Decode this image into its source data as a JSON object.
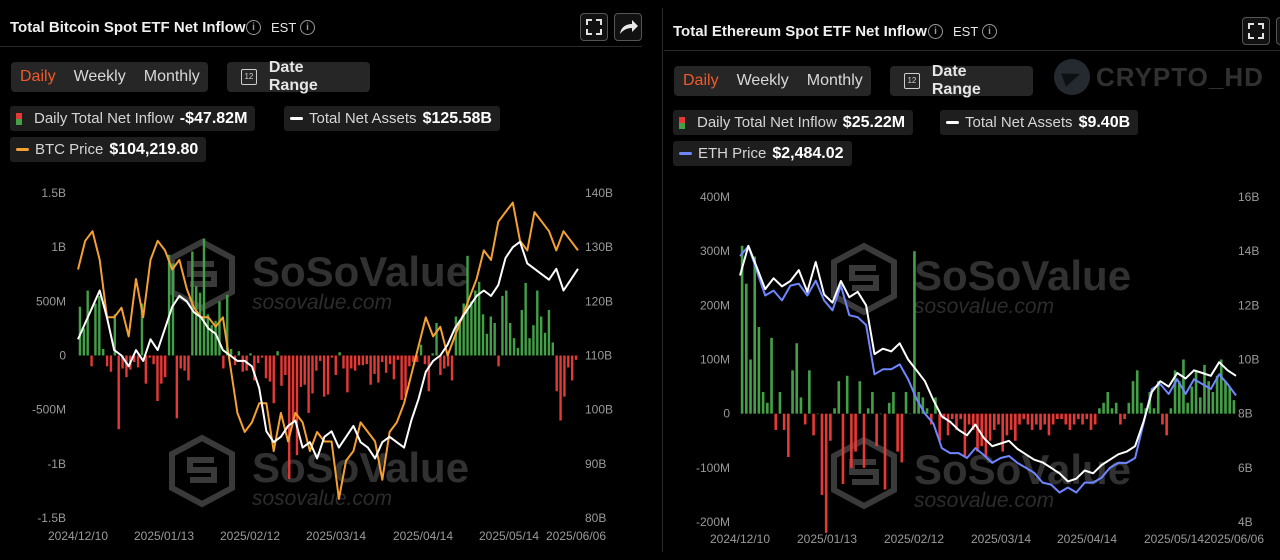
{
  "btc": {
    "title": "Total Bitcoin Spot ETF Net Inflow",
    "info_icon": "i",
    "timezone": "EST",
    "tabs": [
      "Daily",
      "Weekly",
      "Monthly"
    ],
    "active_tab": "Daily",
    "date_range_label": "Date Range",
    "calendar_digits": "12",
    "legend": {
      "inflow_label": "Daily Total Net Inflow",
      "inflow_value": "-$47.82M",
      "assets_label": "Total Net Assets",
      "assets_value": "$125.58B",
      "price_label": "BTC Price",
      "price_value": "$104,219.80"
    }
  },
  "eth": {
    "title": "Total Ethereum Spot ETF Net Inflow",
    "info_icon": "i",
    "timezone": "EST",
    "tabs": [
      "Daily",
      "Weekly",
      "Monthly"
    ],
    "active_tab": "Daily",
    "date_range_label": "Date Range",
    "calendar_digits": "12",
    "legend": {
      "inflow_label": "Daily Total Net Inflow",
      "inflow_value": "$25.22M",
      "assets_label": "Total Net Assets",
      "assets_value": "$9.40B",
      "price_label": "ETH Price",
      "price_value": "$2,484.02"
    }
  },
  "watermark": {
    "brand": "SoSoValue",
    "url": "sosovalue.com",
    "channel": "CRYPTO_HD"
  },
  "colors": {
    "accent": "#f05a2a",
    "inflow_positive": "#43a047",
    "inflow_negative": "#e53935",
    "net_assets_line": "#ffffff",
    "btc_price_line": "#f5a033",
    "eth_price_line": "#6f86ff"
  },
  "chart_data": [
    {
      "type": "bar",
      "title": "Total Bitcoin Spot ETF Net Inflow",
      "x_ticks": [
        "2024/12/10",
        "2025/01/13",
        "2025/02/12",
        "2025/03/14",
        "2025/04/14",
        "2025/05/14",
        "2025/06/06"
      ],
      "y_left_ticks": [
        "1.5B",
        "1B",
        "500M",
        "0",
        "-500M",
        "-1B",
        "-1.5B"
      ],
      "y_left_range": [
        -1500,
        1500
      ],
      "y_left_unit": "M USD",
      "y_right_ticks": [
        "140B",
        "130B",
        "120B",
        "110B",
        "100B",
        "90B",
        "80B"
      ],
      "y_right_range": [
        80,
        140
      ],
      "y_right_unit": "B USD",
      "series": [
        {
          "name": "Daily Total Net Inflow",
          "kind": "bar",
          "values": [
            450,
            250,
            600,
            -100,
            480,
            550,
            60,
            -100,
            -150,
            380,
            -680,
            -120,
            -200,
            -130,
            -60,
            -110,
            480,
            -260,
            -20,
            -80,
            -420,
            -260,
            -200,
            930,
            850,
            -580,
            -120,
            -140,
            -230,
            960,
            640,
            580,
            1080,
            380,
            280,
            320,
            500,
            -120,
            560,
            60,
            -90,
            40,
            -150,
            -140,
            20,
            -230,
            -70,
            -20,
            -210,
            -240,
            -440,
            40,
            -280,
            -180,
            -1140,
            -620,
            -920,
            -290,
            -270,
            -530,
            -350,
            -140,
            -50,
            -380,
            -360,
            -20,
            -180,
            30,
            -120,
            -340,
            -120,
            -140,
            -90,
            -90,
            -80,
            -270,
            -170,
            -250,
            -60,
            -160,
            -80,
            -220,
            -40,
            -410,
            -370,
            -100,
            -60,
            -60,
            100,
            -80,
            -330,
            20,
            300,
            -180,
            -120,
            -100,
            -230,
            360,
            320,
            480,
            920,
            500,
            600,
            680,
            380,
            200,
            360,
            300,
            -100,
            550,
            600,
            300,
            160,
            70,
            420,
            670,
            160,
            280,
            600,
            360,
            210,
            420,
            120,
            -330,
            -600,
            -380,
            -110,
            -230,
            -40
          ],
          "note": "approximate, in millions USD"
        },
        {
          "name": "Total Net Assets",
          "kind": "line",
          "values": [
            113,
            116,
            119,
            122,
            117,
            111,
            110,
            108,
            111,
            109,
            113,
            111,
            115,
            119,
            121,
            120,
            118,
            117,
            115,
            114,
            111,
            110,
            109,
            109,
            108,
            104,
            96,
            94,
            95,
            97,
            98,
            93,
            94,
            91,
            95,
            96,
            93,
            95,
            97,
            94,
            93,
            91,
            94,
            95,
            94,
            93,
            98,
            102,
            107,
            109,
            110,
            112,
            115,
            117,
            119,
            121,
            122,
            121,
            123,
            128,
            130,
            131,
            127,
            126,
            125,
            124,
            126,
            122,
            124,
            126
          ],
          "note": "approximate, in billions USD"
        },
        {
          "name": "BTC Price",
          "kind": "line",
          "values": [
            102,
            105,
            106,
            103,
            97,
            97,
            98,
            95,
            101,
            97,
            103,
            105,
            104,
            102,
            103,
            100,
            98,
            97,
            97,
            96,
            97,
            92,
            87,
            85,
            86,
            88,
            88,
            83,
            87,
            84,
            87,
            86,
            83,
            85,
            84,
            84,
            78,
            82,
            83,
            86,
            85,
            84,
            80,
            85,
            86,
            88,
            91,
            94,
            97,
            95,
            96,
            93,
            95,
            97,
            99,
            101,
            104,
            103,
            107,
            108,
            109,
            105,
            104,
            108,
            107,
            106,
            104,
            106,
            105,
            104
          ],
          "note": "approximate, in thousands USD, drawn against the right axis scale"
        }
      ]
    },
    {
      "type": "bar",
      "title": "Total Ethereum Spot ETF Net Inflow",
      "x_ticks": [
        "2024/12/10",
        "2025/01/13",
        "2025/02/12",
        "2025/03/14",
        "2025/04/14",
        "2025/05/14",
        "2025/06/06"
      ],
      "y_left_ticks": [
        "400M",
        "300M",
        "200M",
        "100M",
        "0",
        "-100M",
        "-200M"
      ],
      "y_left_range": [
        -200,
        400
      ],
      "y_left_unit": "M USD",
      "y_right_ticks": [
        "16B",
        "14B",
        "12B",
        "10B",
        "8B",
        "6B",
        "4B"
      ],
      "y_right_range": [
        4,
        16
      ],
      "y_right_unit": "B USD",
      "series": [
        {
          "name": "Daily Total Net Inflow",
          "kind": "bar",
          "values": [
            310,
            240,
            100,
            290,
            160,
            40,
            20,
            140,
            -30,
            40,
            -30,
            -80,
            80,
            130,
            30,
            -20,
            80,
            -40,
            0,
            -150,
            -220,
            -50,
            10,
            60,
            -130,
            70,
            -100,
            -70,
            60,
            -100,
            10,
            40,
            -60,
            0,
            -140,
            20,
            40,
            -70,
            -90,
            40,
            0,
            300,
            40,
            30,
            10,
            -20,
            30,
            -50,
            -10,
            -40,
            -10,
            -30,
            -10,
            -80,
            -20,
            -30,
            -70,
            -60,
            -80,
            -50,
            -30,
            -20,
            -70,
            -40,
            -30,
            -50,
            -20,
            -10,
            -20,
            -30,
            -20,
            -30,
            -20,
            -40,
            -20,
            -10,
            -10,
            -20,
            -30,
            -20,
            -10,
            -20,
            -10,
            -30,
            -20,
            10,
            20,
            40,
            10,
            20,
            -20,
            -10,
            20,
            60,
            80,
            20,
            10,
            40,
            10,
            60,
            -20,
            -40,
            10,
            80,
            60,
            100,
            20,
            50,
            80,
            30,
            90,
            60,
            40,
            70,
            100,
            60,
            50,
            25
          ],
          "note": "approximate, in millions USD"
        },
        {
          "name": "Total Net Assets",
          "kind": "line",
          "values": [
            13.1,
            14.2,
            13.4,
            12.6,
            13.0,
            12.7,
            12.9,
            13.3,
            12.5,
            13.6,
            12.4,
            12.1,
            12.9,
            12.3,
            12.5,
            12.0,
            10.2,
            10.4,
            10.3,
            10.6,
            10.0,
            9.6,
            9.2,
            8.5,
            7.9,
            7.7,
            7.4,
            7.2,
            7.6,
            7.1,
            6.8,
            6.9,
            7.0,
            6.7,
            6.5,
            6.3,
            6.2,
            6.0,
            5.8,
            5.5,
            5.6,
            5.9,
            5.8,
            6.1,
            6.3,
            6.5,
            6.6,
            6.8,
            7.7,
            8.8,
            9.2,
            9.0,
            9.5,
            9.3,
            9.6,
            9.5,
            9.4,
            9.9,
            9.6,
            9.4
          ],
          "note": "approximate, in billions USD"
        },
        {
          "name": "ETH Price",
          "kind": "line",
          "values": [
            3900,
            4000,
            3750,
            3500,
            3550,
            3450,
            3600,
            3620,
            3500,
            3650,
            3450,
            3350,
            3600,
            3300,
            3280,
            3200,
            2700,
            2750,
            2750,
            2800,
            2650,
            2450,
            2300,
            2200,
            1950,
            1900,
            1900,
            1850,
            1950,
            1880,
            1800,
            1850,
            1870,
            1800,
            1750,
            1700,
            1600,
            1580,
            1500,
            1550,
            1500,
            1600,
            1600,
            1650,
            1750,
            1800,
            1800,
            1850,
            2200,
            2550,
            2600,
            2500,
            2650,
            2500,
            2650,
            2600,
            2550,
            2700,
            2600,
            2484
          ],
          "note": "approximate, in USD, drawn against the right axis scale"
        }
      ]
    }
  ]
}
